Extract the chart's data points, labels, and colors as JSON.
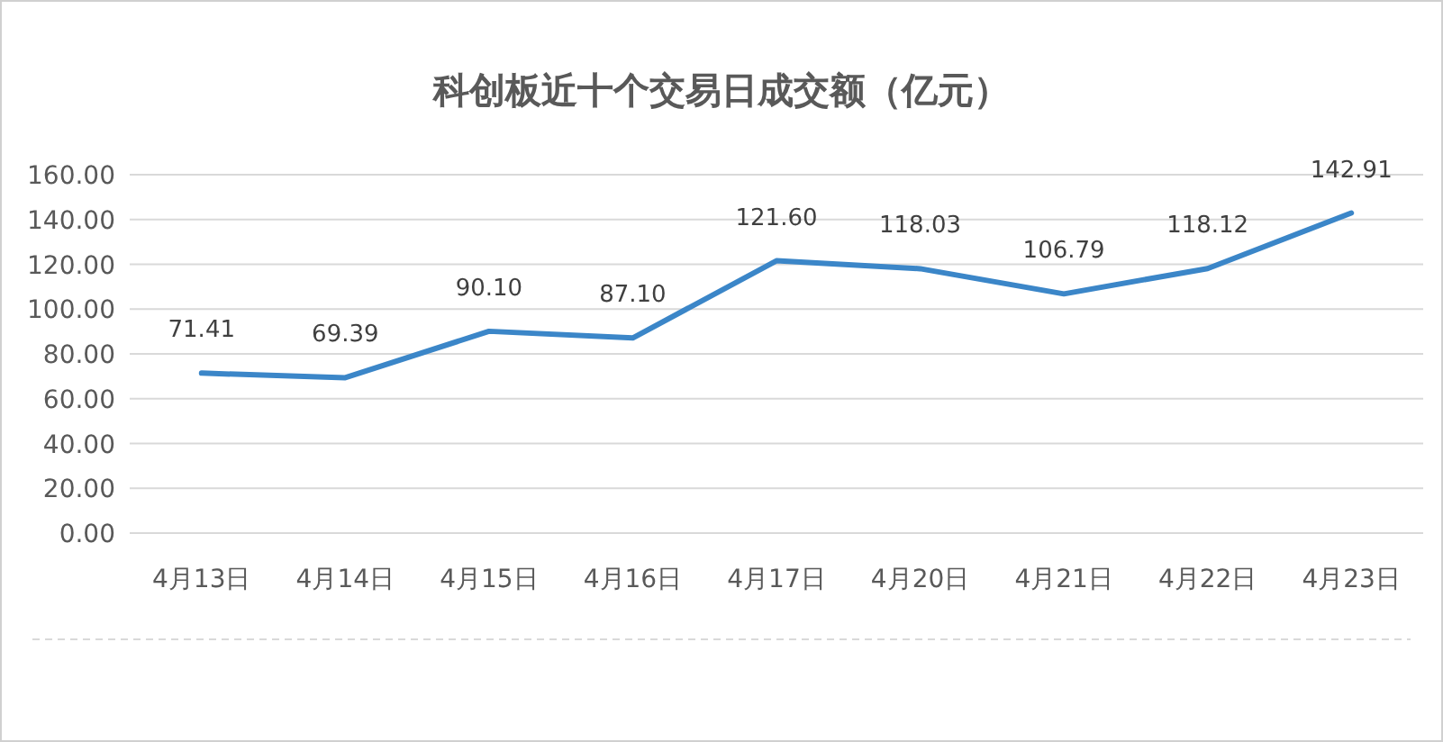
{
  "chart_data": {
    "type": "line",
    "title": "科创板近十个交易日成交额（亿元）",
    "categories": [
      "4月13日",
      "4月14日",
      "4月15日",
      "4月16日",
      "4月17日",
      "4月20日",
      "4月21日",
      "4月22日",
      "4月23日"
    ],
    "values": [
      71.41,
      69.39,
      90.1,
      87.1,
      121.6,
      118.03,
      106.79,
      118.12,
      142.91
    ],
    "value_labels": [
      "71.41",
      "69.39",
      "90.10",
      "87.10",
      "121.60",
      "118.03",
      "106.79",
      "118.12",
      "142.91"
    ],
    "color": "#3b86c8",
    "grid": "y",
    "ylim": [
      0,
      160
    ],
    "yticks": [
      {
        "value": 0,
        "label": "0.00"
      },
      {
        "value": 20,
        "label": "20.00"
      },
      {
        "value": 40,
        "label": "40.00"
      },
      {
        "value": 60,
        "label": "60.00"
      },
      {
        "value": 80,
        "label": "80.00"
      },
      {
        "value": 100,
        "label": "100.00"
      },
      {
        "value": 120,
        "label": "120.00"
      },
      {
        "value": 140,
        "label": "140.00"
      },
      {
        "value": 160,
        "label": "160.00"
      }
    ]
  }
}
